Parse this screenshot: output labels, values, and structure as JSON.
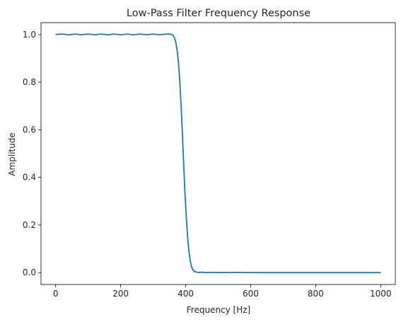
{
  "chart_data": {
    "type": "line",
    "title": "Low-Pass Filter Frequency Response",
    "xlabel": "Frequency [Hz]",
    "ylabel": "Amplitude",
    "xlim": [
      -45,
      1045
    ],
    "ylim": [
      -0.05,
      1.05
    ],
    "xticks": [
      0,
      200,
      400,
      600,
      800,
      1000
    ],
    "xtick_labels": [
      "0",
      "200",
      "400",
      "600",
      "800",
      "1000"
    ],
    "yticks": [
      0.0,
      0.2,
      0.4,
      0.6,
      0.8,
      1.0
    ],
    "ytick_labels": [
      "0.0",
      "0.2",
      "0.4",
      "0.6",
      "0.8",
      "1.0"
    ],
    "grid": false,
    "series": [
      {
        "color": "#1f77b4",
        "x": [
          0,
          20,
          40,
          60,
          80,
          100,
          120,
          140,
          160,
          180,
          200,
          220,
          240,
          260,
          280,
          300,
          320,
          340,
          350,
          358,
          362,
          366,
          370,
          374,
          378,
          382,
          386,
          390,
          394,
          398,
          402,
          406,
          410,
          414,
          418,
          422,
          426,
          430,
          434,
          440,
          450,
          460,
          480,
          500,
          520,
          540,
          560,
          600,
          700,
          800,
          900,
          1000
        ],
        "y": [
          1.0,
          1.002,
          0.999,
          1.002,
          0.999,
          1.002,
          0.999,
          1.002,
          0.999,
          1.002,
          0.999,
          1.002,
          0.999,
          1.002,
          0.999,
          1.002,
          0.999,
          1.002,
          1.002,
          1.0,
          0.995,
          0.985,
          0.965,
          0.93,
          0.88,
          0.8,
          0.7,
          0.58,
          0.45,
          0.33,
          0.23,
          0.15,
          0.09,
          0.05,
          0.025,
          0.012,
          0.006,
          0.003,
          0.002,
          0.0,
          0.002,
          0.0,
          0.001,
          0.0,
          0.001,
          0.0,
          0.001,
          0.0,
          0.0,
          0.0,
          0.0,
          0.0
        ]
      }
    ]
  }
}
